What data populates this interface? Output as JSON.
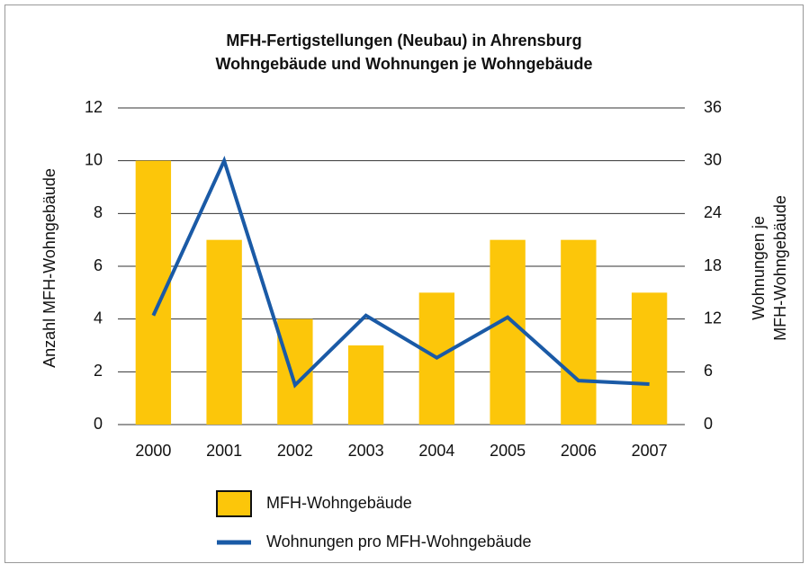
{
  "chart_data": {
    "type": "bar",
    "title": [
      "MFH-Fertigstellungen (Neubau) in Ahrensburg",
      "Wohngebäude und Wohnungen je Wohngebäude"
    ],
    "y_label": "Anzahl MFH-Wohngebäude",
    "y2_label": [
      "Wohnungen je",
      "MFH-Wohngebäude"
    ],
    "categories": [
      "2000",
      "2001",
      "2002",
      "2003",
      "2004",
      "2005",
      "2006",
      "2007"
    ],
    "series": [
      {
        "name": "MFH-Wohngebäude",
        "type": "bar",
        "color": "#fcc60a",
        "values": [
          10,
          7,
          4,
          3,
          5,
          7,
          7,
          5
        ]
      },
      {
        "name": "Wohnungen pro MFH-Wohngebäude",
        "type": "line",
        "axis": "y2",
        "color": "#1a5aa6",
        "values": [
          12.4,
          30,
          4.5,
          12.4,
          7.6,
          12.2,
          5,
          4.6
        ]
      }
    ],
    "ylim": [
      0,
      12
    ],
    "yticks": [
      0,
      2,
      4,
      6,
      8,
      10,
      12
    ],
    "y2lim": [
      0,
      36
    ],
    "y2ticks": [
      0,
      6,
      12,
      18,
      24,
      30,
      36
    ],
    "grid": true,
    "legend": "bottom"
  }
}
